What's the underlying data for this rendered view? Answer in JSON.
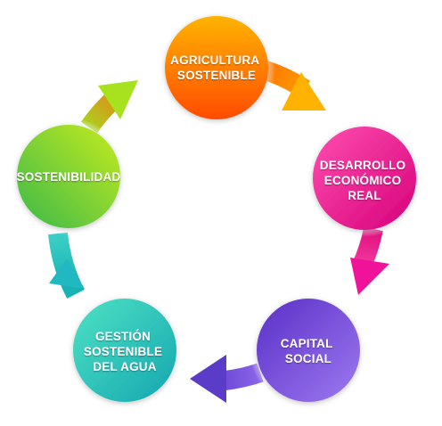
{
  "nodes": [
    {
      "id": "agricultura",
      "lines": [
        "AGRICULTURA",
        "SOSTENIBLE"
      ],
      "color_light": "#ffb300",
      "color_dark": "#ff4b00"
    },
    {
      "id": "desarrollo",
      "lines": [
        "DESARROLLO",
        "ECONÓMICO",
        "REAL"
      ],
      "color_light": "#ff4fb0",
      "color_dark": "#d6007a"
    },
    {
      "id": "capital",
      "lines": [
        "CAPITAL",
        "SOCIAL"
      ],
      "color_light": "#9d7af0",
      "color_dark": "#5a2fc7"
    },
    {
      "id": "gestion",
      "lines": [
        "GESTIÓN",
        "SOSTENIBLE",
        "DEL AGUA"
      ],
      "color_light": "#4ee2c4",
      "color_dark": "#14a6b0"
    },
    {
      "id": "sostenibilidad",
      "lines": [
        "SOSTENIBILIDAD"
      ],
      "color_light": "#c6ec1e",
      "color_dark": "#3bb84a"
    }
  ],
  "label_color": "#ffffff",
  "background": "#ffffff"
}
